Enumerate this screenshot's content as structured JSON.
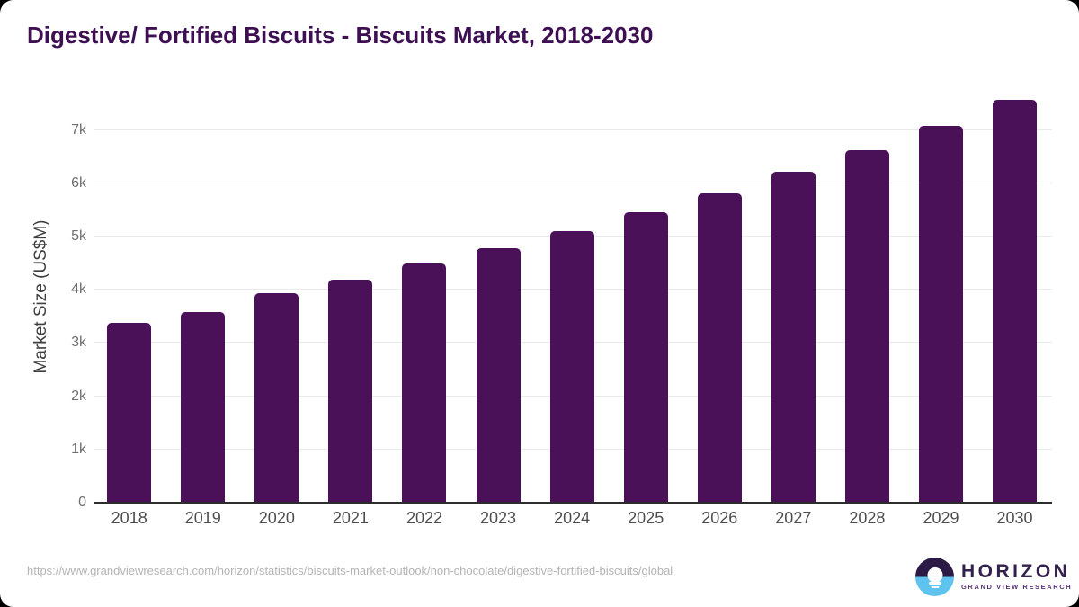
{
  "title": "Digestive/ Fortified Biscuits - Biscuits Market, 2018-2030",
  "chart_data": {
    "type": "bar",
    "title": "Digestive/ Fortified Biscuits - Biscuits Market, 2018-2030",
    "categories": [
      "2018",
      "2019",
      "2020",
      "2021",
      "2022",
      "2023",
      "2024",
      "2025",
      "2026",
      "2027",
      "2028",
      "2029",
      "2030"
    ],
    "values": [
      3380,
      3590,
      3930,
      4190,
      4490,
      4790,
      5110,
      5460,
      5820,
      6210,
      6630,
      7080,
      7570
    ],
    "unit": "US$M",
    "xlabel": "",
    "ylabel": "Market Size (US$M)",
    "ylim": [
      0,
      7755
    ],
    "ytick_values": [
      0,
      1000,
      2000,
      3000,
      4000,
      5000,
      6000,
      7000
    ],
    "ytick_labels": [
      "0",
      "1k",
      "2k",
      "3k",
      "4k",
      "5k",
      "6k",
      "7k"
    ],
    "grid": "horizontal",
    "legend": "none",
    "bar_color": "#4a1159"
  },
  "footer": {
    "source_url": "https://www.grandviewresearch.com/horizon/statistics/biscuits-market-outlook/non-chocolate/digestive-fortified-biscuits/global",
    "logo_name": "HORIZON",
    "logo_tagline": "GRAND VIEW RESEARCH"
  },
  "colors": {
    "bar": "#4a1159",
    "title": "#3e1053",
    "gridline": "#e9e9e9",
    "axis_line": "#2d2d2d",
    "logo_dark": "#2a1a45",
    "logo_blue": "#5ec3ee",
    "background": "#ffffff"
  }
}
